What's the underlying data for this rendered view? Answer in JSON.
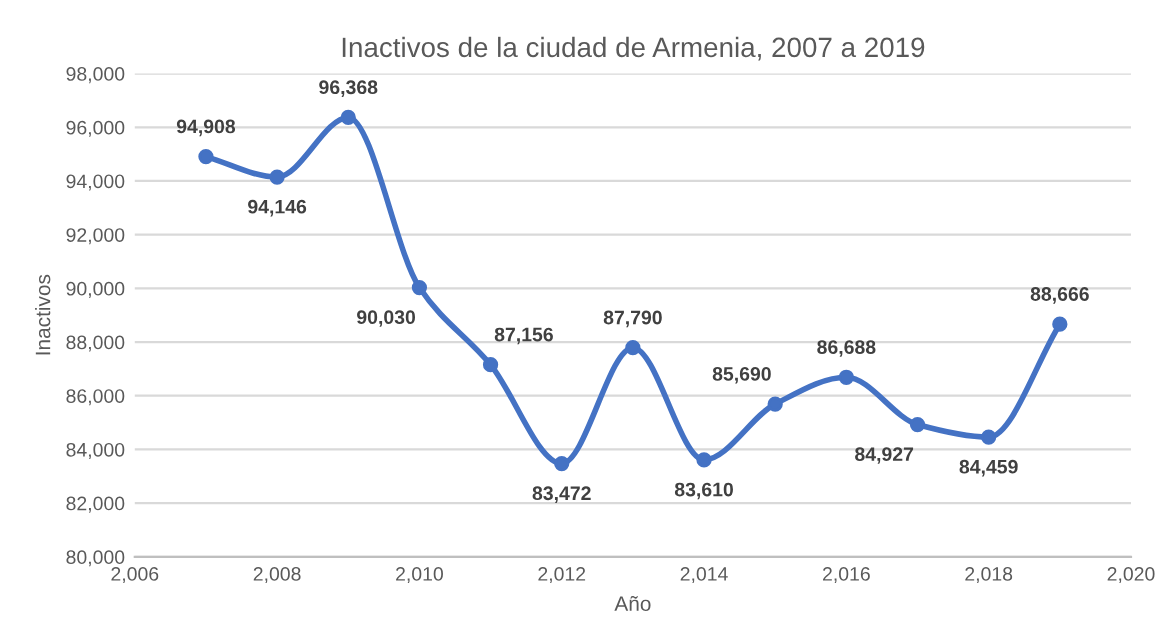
{
  "chart_data": {
    "type": "line",
    "title": "Inactivos de la ciudad de Armenia, 2007 a 2019",
    "xlabel": "Año",
    "ylabel": "Inactivos",
    "x": [
      2007,
      2008,
      2009,
      2010,
      2011,
      2012,
      2013,
      2014,
      2015,
      2016,
      2017,
      2018,
      2019
    ],
    "series": [
      {
        "color": "#4472c4",
        "values": [
          94908,
          94146,
          96368,
          90030,
          87156,
          83472,
          87790,
          83610,
          85690,
          86688,
          84927,
          84459,
          88666
        ],
        "value_labels": [
          "94,908",
          "94,146",
          "96,368",
          "90,030",
          "87,156",
          "83,472",
          "87,790",
          "83,610",
          "85,690",
          "86,688",
          "84,927",
          "84,459",
          "88,666"
        ]
      }
    ],
    "xlim": [
      2006,
      2020
    ],
    "xticks": [
      {
        "value": 2006,
        "label": "2,006"
      },
      {
        "value": 2008,
        "label": "2,008"
      },
      {
        "value": 2010,
        "label": "2,010"
      },
      {
        "value": 2012,
        "label": "2,012"
      },
      {
        "value": 2014,
        "label": "2,014"
      },
      {
        "value": 2016,
        "label": "2,016"
      },
      {
        "value": 2018,
        "label": "2,018"
      },
      {
        "value": 2020,
        "label": "2,020"
      }
    ],
    "ylim": [
      80000,
      98000
    ],
    "yticks": [
      {
        "value": 80000,
        "label": "80,000"
      },
      {
        "value": 82000,
        "label": "82,000"
      },
      {
        "value": 84000,
        "label": "84,000"
      },
      {
        "value": 86000,
        "label": "86,000"
      },
      {
        "value": 88000,
        "label": "88,000"
      },
      {
        "value": 90000,
        "label": "90,000"
      },
      {
        "value": 92000,
        "label": "92,000"
      },
      {
        "value": 94000,
        "label": "94,000"
      },
      {
        "value": 96000,
        "label": "96,000"
      },
      {
        "value": 98000,
        "label": "98,000"
      }
    ],
    "grid": "y",
    "marker": "circle",
    "line_style": "solid"
  }
}
